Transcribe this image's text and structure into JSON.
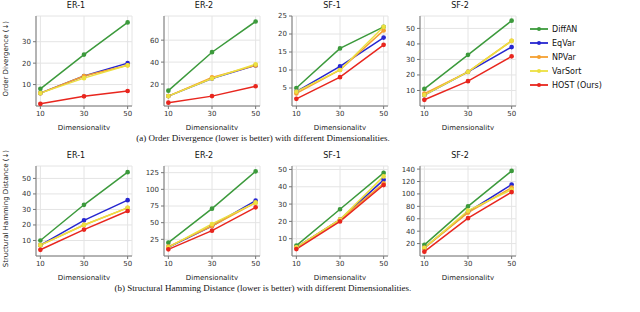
{
  "chart_data": [
    {
      "type": "line",
      "title": "ER-1",
      "x_label": "Dimensionality",
      "y_label": "Order Divergence (↓)",
      "x": [
        10,
        30,
        50
      ],
      "xlim": [
        8,
        52
      ],
      "xticks": [
        10,
        30,
        50
      ],
      "ylim": [
        0,
        42
      ],
      "yticks": [
        10,
        20,
        30
      ],
      "grid": true,
      "marker": "o",
      "series": [
        {
          "name": "DiffAN",
          "color": "#3c9a3c",
          "values": [
            8,
            24,
            39
          ]
        },
        {
          "name": "EqVar",
          "color": "#2626d0",
          "values": [
            6,
            14,
            20
          ]
        },
        {
          "name": "NPVar",
          "color": "#f5a030",
          "values": [
            6,
            14,
            19
          ]
        },
        {
          "name": "VarSort",
          "color": "#ece040",
          "values": [
            6,
            13,
            19
          ]
        },
        {
          "name": "HOST (Ours)",
          "color": "#e8261e",
          "values": [
            1,
            4.5,
            7
          ]
        }
      ]
    },
    {
      "type": "line",
      "title": "ER-2",
      "x_label": "Dimensionality",
      "x": [
        10,
        30,
        50
      ],
      "xlim": [
        8,
        52
      ],
      "xticks": [
        10,
        30,
        50
      ],
      "ylim": [
        0,
        82
      ],
      "yticks": [
        20,
        40,
        60
      ],
      "grid": true,
      "marker": "o",
      "series": [
        {
          "name": "DiffAN",
          "color": "#3c9a3c",
          "values": [
            14,
            49,
            77
          ]
        },
        {
          "name": "EqVar",
          "color": "#2626d0",
          "values": [
            9,
            25,
            37
          ]
        },
        {
          "name": "NPVar",
          "color": "#f5a030",
          "values": [
            9,
            26,
            37
          ]
        },
        {
          "name": "VarSort",
          "color": "#ece040",
          "values": [
            9,
            25,
            38
          ]
        },
        {
          "name": "HOST (Ours)",
          "color": "#e8261e",
          "values": [
            3,
            9,
            18
          ]
        }
      ]
    },
    {
      "type": "line",
      "title": "SF-1",
      "x_label": "Dimensionality",
      "x": [
        10,
        30,
        50
      ],
      "xlim": [
        8,
        52
      ],
      "xticks": [
        10,
        30,
        50
      ],
      "ylim": [
        0,
        25
      ],
      "yticks": [
        5,
        10,
        15,
        20,
        25
      ],
      "grid": true,
      "marker": "o",
      "series": [
        {
          "name": "DiffAN",
          "color": "#3c9a3c",
          "values": [
            5,
            16,
            22
          ]
        },
        {
          "name": "EqVar",
          "color": "#2626d0",
          "values": [
            4,
            11,
            19
          ]
        },
        {
          "name": "NPVar",
          "color": "#f5a030",
          "values": [
            3.5,
            10,
            21
          ]
        },
        {
          "name": "VarSort",
          "color": "#ece040",
          "values": [
            4,
            10,
            22
          ]
        },
        {
          "name": "HOST (Ours)",
          "color": "#e8261e",
          "values": [
            2,
            8,
            17
          ]
        }
      ]
    },
    {
      "type": "line",
      "title": "SF-2",
      "x_label": "Dimensionality",
      "x": [
        10,
        30,
        50
      ],
      "xlim": [
        8,
        52
      ],
      "xticks": [
        10,
        30,
        50
      ],
      "ylim": [
        0,
        58
      ],
      "yticks": [
        10,
        20,
        30,
        40,
        50
      ],
      "grid": true,
      "marker": "o",
      "legend": "right",
      "series": [
        {
          "name": "DiffAN",
          "color": "#3c9a3c",
          "values": [
            11,
            33,
            55
          ]
        },
        {
          "name": "EqVar",
          "color": "#2626d0",
          "values": [
            7,
            22,
            38
          ]
        },
        {
          "name": "NPVar",
          "color": "#f5a030",
          "values": [
            8,
            22,
            42
          ]
        },
        {
          "name": "VarSort",
          "color": "#ece040",
          "values": [
            7,
            22,
            42
          ]
        },
        {
          "name": "HOST (Ours)",
          "color": "#e8261e",
          "values": [
            4,
            16,
            32
          ]
        }
      ]
    },
    {
      "type": "line",
      "title": "ER-1",
      "x_label": "Dimensionality",
      "y_label": "Structural Hamming Distance (↓)",
      "x": [
        10,
        30,
        50
      ],
      "xlim": [
        8,
        52
      ],
      "xticks": [
        10,
        30,
        50
      ],
      "ylim": [
        0,
        58
      ],
      "yticks": [
        10,
        20,
        30,
        40,
        50
      ],
      "grid": true,
      "marker": "o",
      "series": [
        {
          "name": "DiffAN",
          "color": "#3c9a3c",
          "values": [
            10,
            33,
            54
          ]
        },
        {
          "name": "EqVar",
          "color": "#2626d0",
          "values": [
            7,
            23,
            36
          ]
        },
        {
          "name": "NPVar",
          "color": "#f5a030",
          "values": [
            7,
            20,
            31
          ]
        },
        {
          "name": "VarSort",
          "color": "#ece040",
          "values": [
            7,
            20,
            31
          ]
        },
        {
          "name": "HOST (Ours)",
          "color": "#e8261e",
          "values": [
            4,
            17,
            29
          ]
        }
      ]
    },
    {
      "type": "line",
      "title": "ER-2",
      "x_label": "Dimensionality",
      "x": [
        10,
        30,
        50
      ],
      "xlim": [
        8,
        52
      ],
      "xticks": [
        10,
        30,
        50
      ],
      "ylim": [
        0,
        135
      ],
      "yticks": [
        25,
        50,
        75,
        100,
        125
      ],
      "grid": true,
      "marker": "o",
      "series": [
        {
          "name": "DiffAN",
          "color": "#3c9a3c",
          "values": [
            20,
            71,
            127
          ]
        },
        {
          "name": "EqVar",
          "color": "#2626d0",
          "values": [
            13,
            45,
            83
          ]
        },
        {
          "name": "NPVar",
          "color": "#f5a030",
          "values": [
            14,
            45,
            80
          ]
        },
        {
          "name": "VarSort",
          "color": "#ece040",
          "values": [
            13,
            48,
            80
          ]
        },
        {
          "name": "HOST (Ours)",
          "color": "#e8261e",
          "values": [
            10,
            38,
            73
          ]
        }
      ]
    },
    {
      "type": "line",
      "title": "SF-1",
      "x_label": "Dimensionality",
      "x": [
        10,
        30,
        50
      ],
      "xlim": [
        8,
        52
      ],
      "xticks": [
        10,
        30,
        50
      ],
      "ylim": [
        0,
        52
      ],
      "yticks": [
        10,
        20,
        30,
        40,
        50
      ],
      "grid": true,
      "marker": "o",
      "series": [
        {
          "name": "DiffAN",
          "color": "#3c9a3c",
          "values": [
            6,
            27,
            48
          ]
        },
        {
          "name": "EqVar",
          "color": "#2626d0",
          "values": [
            5,
            21,
            44
          ]
        },
        {
          "name": "NPVar",
          "color": "#f5a030",
          "values": [
            5,
            21,
            42
          ]
        },
        {
          "name": "VarSort",
          "color": "#ece040",
          "values": [
            5,
            21,
            46
          ]
        },
        {
          "name": "HOST (Ours)",
          "color": "#e8261e",
          "values": [
            4,
            20,
            41
          ]
        }
      ]
    },
    {
      "type": "line",
      "title": "SF-2",
      "x_label": "Dimensionality",
      "x": [
        10,
        30,
        50
      ],
      "xlim": [
        8,
        52
      ],
      "xticks": [
        10,
        30,
        50
      ],
      "ylim": [
        0,
        145
      ],
      "yticks": [
        20,
        40,
        60,
        80,
        100,
        120,
        140
      ],
      "grid": true,
      "marker": "o",
      "series": [
        {
          "name": "DiffAN",
          "color": "#3c9a3c",
          "values": [
            18,
            80,
            137
          ]
        },
        {
          "name": "EqVar",
          "color": "#2626d0",
          "values": [
            13,
            71,
            115
          ]
        },
        {
          "name": "NPVar",
          "color": "#f5a030",
          "values": [
            13,
            70,
            110
          ]
        },
        {
          "name": "VarSort",
          "color": "#ece040",
          "values": [
            13,
            73,
            107
          ]
        },
        {
          "name": "HOST (Ours)",
          "color": "#e8261e",
          "values": [
            7,
            61,
            103
          ]
        }
      ]
    }
  ],
  "captions": [
    "(a) Order Divergence (lower is better) with different Dimensionalities.",
    "(b) Structural Hamming Distance (lower is better) with different Dimensionalities."
  ]
}
